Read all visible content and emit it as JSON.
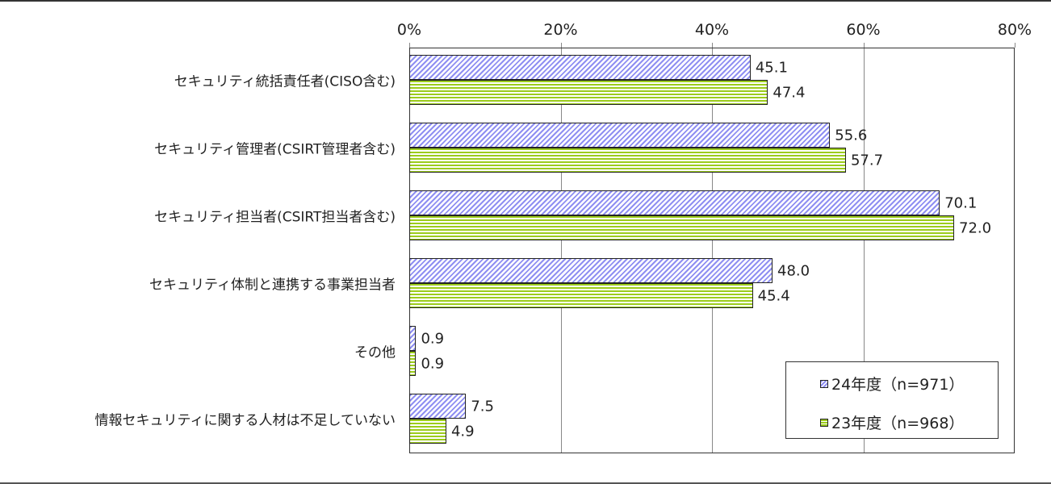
{
  "chart_data": {
    "type": "bar",
    "orientation": "horizontal",
    "title": "",
    "xlabel": "",
    "ylabel": "",
    "xlim": [
      0,
      80
    ],
    "x_ticks": [
      "0%",
      "20%",
      "40%",
      "60%",
      "80%"
    ],
    "grid": true,
    "legend_position": "inside-bottom-right",
    "categories": [
      "セキュリティ統括責任者(CISO含む)",
      "セキュリティ管理者(CSIRT管理者含む)",
      "セキュリティ担当者(CSIRT担当者含む)",
      "セキュリティ体制と連携する事業担当者",
      "その他",
      "情報セキュリティに関する人材は不足していない"
    ],
    "series": [
      {
        "name": "24年度（n=971）",
        "color": "#8f8ff2",
        "pattern": "diagonal-stripes",
        "values": [
          45.1,
          55.6,
          70.1,
          48.0,
          0.9,
          7.5
        ],
        "labels": [
          "45.1",
          "55.6",
          "70.1",
          "48.0",
          "0.9",
          "7.5"
        ]
      },
      {
        "name": "23年度（n=968）",
        "color": "#9ccc1c",
        "pattern": "horizontal-stripes",
        "values": [
          47.4,
          57.7,
          72.0,
          45.4,
          0.9,
          4.9
        ],
        "labels": [
          "47.4",
          "57.7",
          "72.0",
          "45.4",
          "0.9",
          "4.9"
        ]
      }
    ]
  }
}
